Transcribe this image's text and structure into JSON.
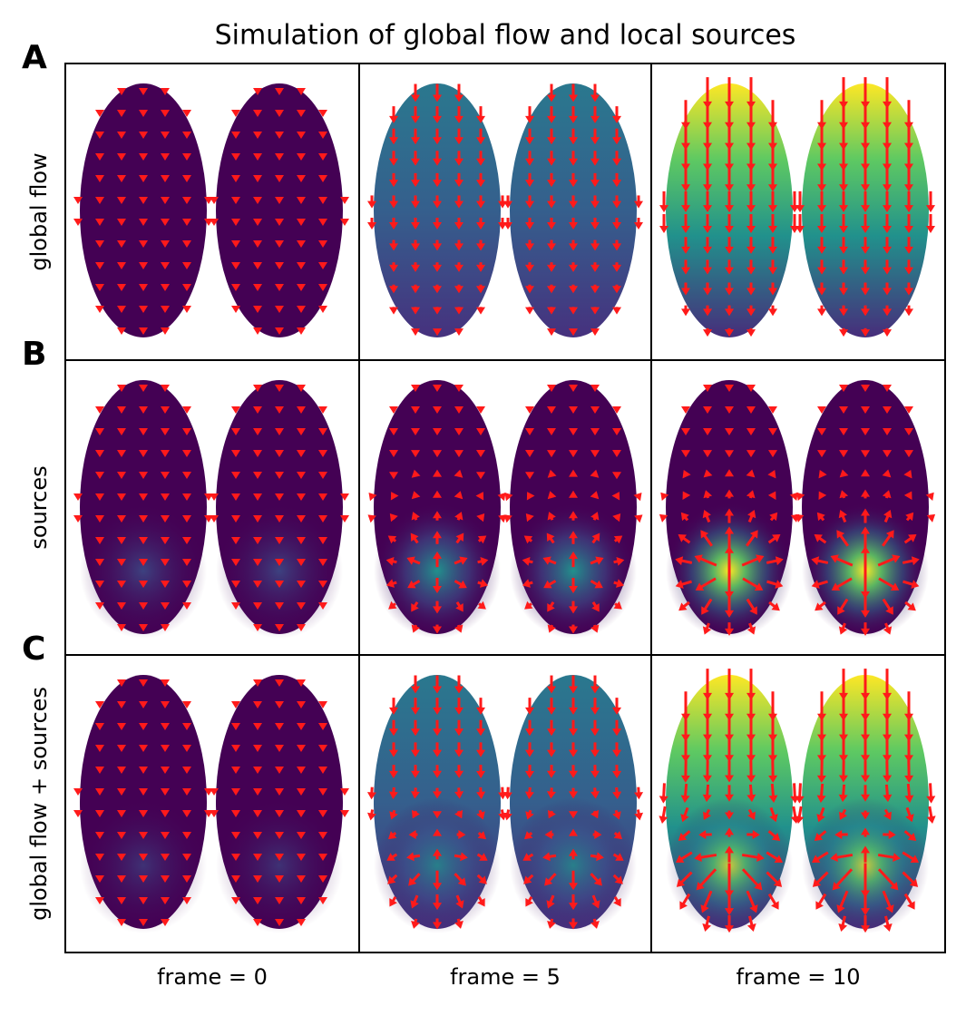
{
  "title": "Simulation of global flow and local sources",
  "rows": [
    {
      "letter": "A",
      "label": "global flow"
    },
    {
      "letter": "B",
      "label": "sources"
    },
    {
      "letter": "C",
      "label": "global flow + sources"
    }
  ],
  "columns": [
    "frame = 0",
    "frame = 5",
    "frame = 10"
  ]
}
